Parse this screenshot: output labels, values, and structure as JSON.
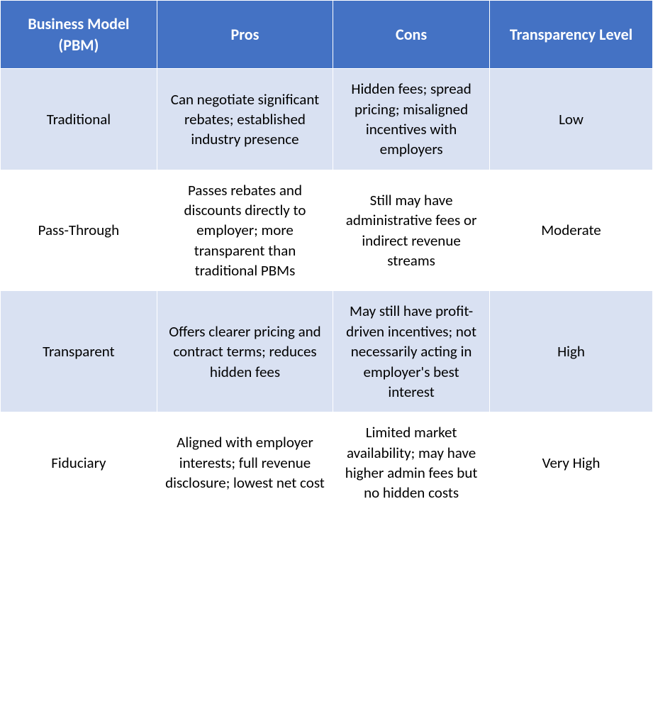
{
  "table": {
    "type": "table",
    "header_bg": "#4472c4",
    "header_text_color": "#ffffff",
    "row_odd_bg": "#d9e1f2",
    "row_even_bg": "#ffffff",
    "border_color": "#ffffff",
    "cell_text_color": "#000000",
    "header_fontsize_pt": 16,
    "cell_fontsize_pt": 15,
    "columns": [
      {
        "label": "Business Model (PBM)",
        "width_pct": 24,
        "align": "center"
      },
      {
        "label": "Pros",
        "width_pct": 27,
        "align": "center"
      },
      {
        "label": "Cons",
        "width_pct": 24,
        "align": "center"
      },
      {
        "label": "Transparency Level",
        "width_pct": 25,
        "align": "center"
      }
    ],
    "rows": [
      {
        "model": "Traditional",
        "pros": "Can negotiate significant rebates; established industry presence",
        "cons": "Hidden fees; spread pricing; misaligned incentives with employers",
        "transparency": "Low"
      },
      {
        "model": "Pass-Through",
        "pros": "Passes rebates and discounts directly to employer; more transparent than traditional PBMs",
        "cons": "Still may have administrative fees or indirect revenue streams",
        "transparency": "Moderate"
      },
      {
        "model": "Transparent",
        "pros": "Offers clearer pricing and contract terms; reduces hidden fees",
        "cons": "May still have profit-driven incentives; not necessarily acting in employer's best interest",
        "transparency": "High"
      },
      {
        "model": "Fiduciary",
        "pros": "Aligned with employer interests; full revenue disclosure; lowest net cost",
        "cons": "Limited market availability; may have higher admin fees but no hidden costs",
        "transparency": "Very High"
      }
    ]
  }
}
